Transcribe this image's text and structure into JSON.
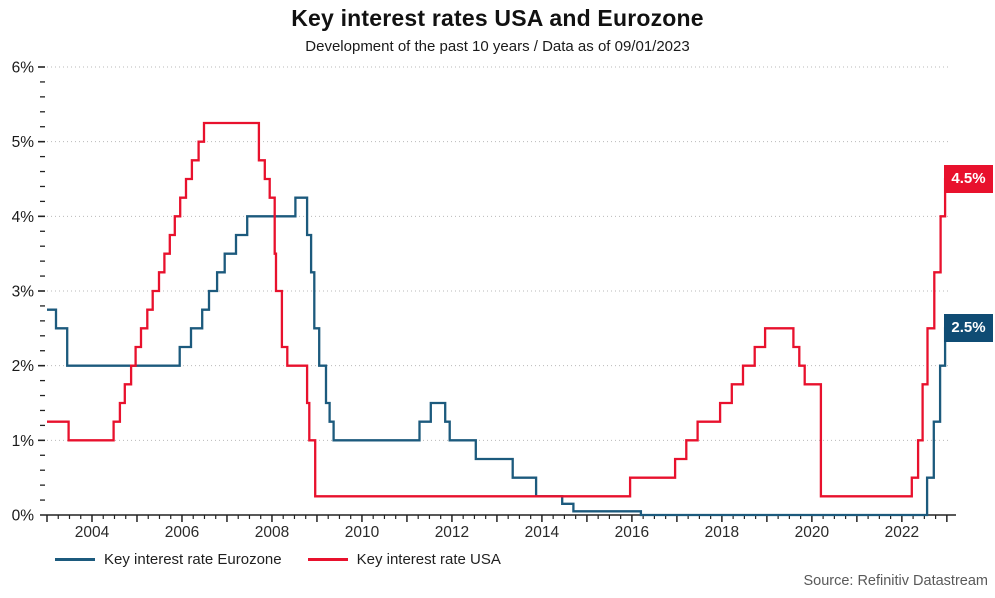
{
  "header": {
    "title": "Key interest rates USA and Eurozone",
    "subtitle": "Development of the past 10 years / Data as of 09/01/2023"
  },
  "footer": {
    "source": "Source: Refinitiv Datastream"
  },
  "legend": {
    "items": [
      {
        "label": "Key interest rate Eurozone",
        "color": "#1c5a7d"
      },
      {
        "label": "Key interest rate USA",
        "color": "#e8112d"
      }
    ]
  },
  "chart_data": {
    "type": "line",
    "title": "Key interest rates USA and Eurozone",
    "subtitle": "Development of the past 10 years / Data as of 09/01/2023",
    "x_axis": {
      "range": [
        2003.0,
        2023.07
      ],
      "tick_labels": [
        "2004",
        "2006",
        "2008",
        "2010",
        "2012",
        "2014",
        "2016",
        "2018",
        "2020",
        "2022"
      ],
      "tick_values": [
        2004,
        2006,
        2008,
        2010,
        2012,
        2014,
        2016,
        2018,
        2020,
        2022
      ],
      "minor_tick_interval_years": 0.25
    },
    "y_axis": {
      "range": [
        0,
        6
      ],
      "tick_labels": [
        "0%",
        "1%",
        "2%",
        "3%",
        "4%",
        "5%",
        "6%"
      ],
      "tick_values": [
        0,
        1,
        2,
        3,
        4,
        5,
        6
      ],
      "minor_tick_interval": 0.2,
      "grid": "dotted"
    },
    "x_end": 2023.03,
    "series": [
      {
        "name": "Key interest rate Eurozone",
        "color": "#1c5a7d",
        "end_label": "2.5%",
        "end_label_color": "#0f4c74",
        "step": true,
        "points": [
          [
            2003.0,
            2.75
          ],
          [
            2003.2,
            2.5
          ],
          [
            2003.45,
            2.0
          ],
          [
            2005.95,
            2.25
          ],
          [
            2006.2,
            2.5
          ],
          [
            2006.45,
            2.75
          ],
          [
            2006.6,
            3.0
          ],
          [
            2006.78,
            3.25
          ],
          [
            2006.95,
            3.5
          ],
          [
            2007.2,
            3.75
          ],
          [
            2007.45,
            4.0
          ],
          [
            2008.52,
            4.25
          ],
          [
            2008.78,
            3.75
          ],
          [
            2008.87,
            3.25
          ],
          [
            2008.94,
            2.5
          ],
          [
            2009.05,
            2.0
          ],
          [
            2009.2,
            1.5
          ],
          [
            2009.28,
            1.25
          ],
          [
            2009.37,
            1.0
          ],
          [
            2011.28,
            1.25
          ],
          [
            2011.53,
            1.5
          ],
          [
            2011.85,
            1.25
          ],
          [
            2011.95,
            1.0
          ],
          [
            2012.53,
            0.75
          ],
          [
            2013.35,
            0.5
          ],
          [
            2013.87,
            0.25
          ],
          [
            2014.45,
            0.15
          ],
          [
            2014.7,
            0.05
          ],
          [
            2016.2,
            0.0
          ],
          [
            2022.56,
            0.5
          ],
          [
            2022.71,
            1.25
          ],
          [
            2022.85,
            2.0
          ],
          [
            2022.96,
            2.5
          ]
        ]
      },
      {
        "name": "Key interest rate USA",
        "color": "#e8112d",
        "end_label": "4.5%",
        "end_label_color": "#e8112d",
        "step": true,
        "points": [
          [
            2003.0,
            1.25
          ],
          [
            2003.48,
            1.0
          ],
          [
            2004.48,
            1.25
          ],
          [
            2004.62,
            1.5
          ],
          [
            2004.73,
            1.75
          ],
          [
            2004.87,
            2.0
          ],
          [
            2004.97,
            2.25
          ],
          [
            2005.09,
            2.5
          ],
          [
            2005.23,
            2.75
          ],
          [
            2005.35,
            3.0
          ],
          [
            2005.49,
            3.25
          ],
          [
            2005.61,
            3.5
          ],
          [
            2005.73,
            3.75
          ],
          [
            2005.84,
            4.0
          ],
          [
            2005.96,
            4.25
          ],
          [
            2006.09,
            4.5
          ],
          [
            2006.22,
            4.75
          ],
          [
            2006.37,
            5.0
          ],
          [
            2006.49,
            5.25
          ],
          [
            2007.71,
            4.75
          ],
          [
            2007.84,
            4.5
          ],
          [
            2007.95,
            4.25
          ],
          [
            2008.06,
            3.5
          ],
          [
            2008.09,
            3.0
          ],
          [
            2008.22,
            2.25
          ],
          [
            2008.34,
            2.0
          ],
          [
            2008.78,
            1.5
          ],
          [
            2008.83,
            1.0
          ],
          [
            2008.96,
            0.25
          ],
          [
            2015.96,
            0.5
          ],
          [
            2016.96,
            0.75
          ],
          [
            2017.21,
            1.0
          ],
          [
            2017.46,
            1.25
          ],
          [
            2017.96,
            1.5
          ],
          [
            2018.22,
            1.75
          ],
          [
            2018.47,
            2.0
          ],
          [
            2018.73,
            2.25
          ],
          [
            2018.96,
            2.5
          ],
          [
            2019.59,
            2.25
          ],
          [
            2019.72,
            2.0
          ],
          [
            2019.84,
            1.75
          ],
          [
            2020.2,
            0.25
          ],
          [
            2022.22,
            0.5
          ],
          [
            2022.36,
            1.0
          ],
          [
            2022.46,
            1.75
          ],
          [
            2022.57,
            2.5
          ],
          [
            2022.72,
            3.25
          ],
          [
            2022.86,
            4.0
          ],
          [
            2022.96,
            4.5
          ]
        ]
      }
    ]
  }
}
